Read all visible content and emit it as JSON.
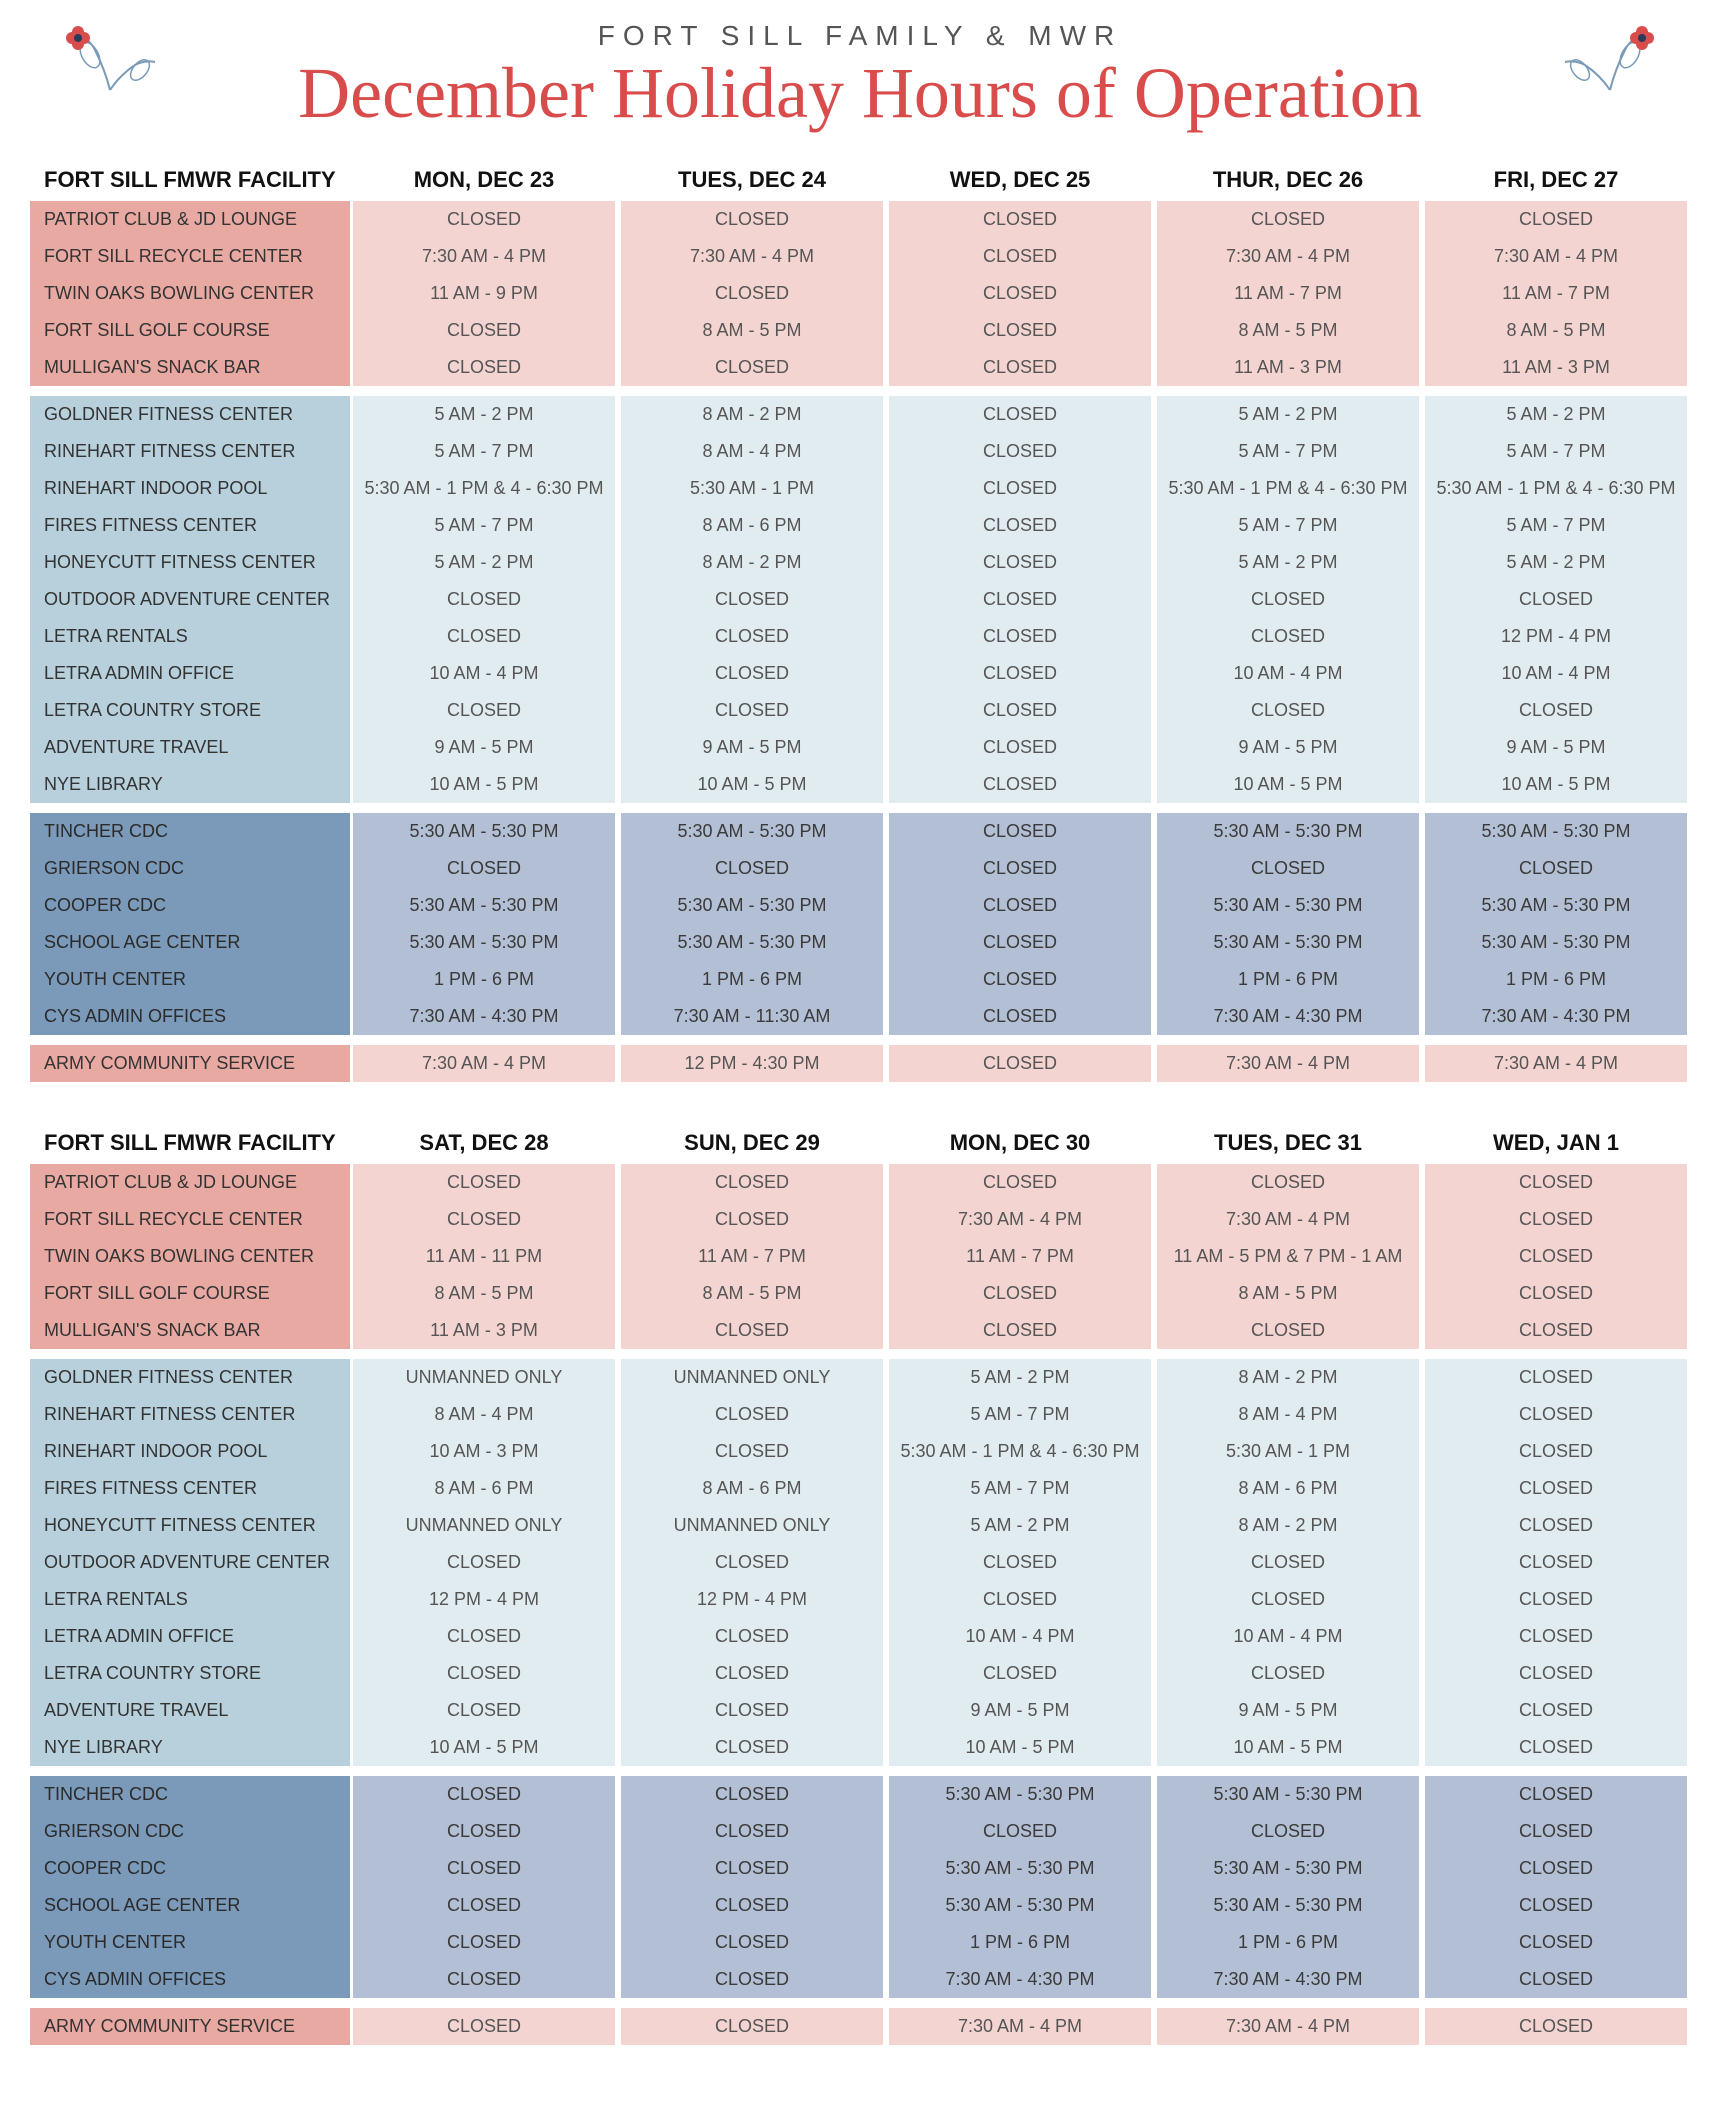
{
  "header": {
    "subtitle": "FORT SILL FAMILY & MWR",
    "title": "December Holiday Hours of Operation"
  },
  "colors": {
    "title_red": "#d94c4c",
    "red_dark": "#e8a9a3",
    "red_light": "#f4d4d0",
    "lblue_dark": "#b7d0dc",
    "lblue_light": "#e1ecf0",
    "dblue_dark": "#7b99b8",
    "dblue_light": "#b2bfd4"
  },
  "tables": [
    {
      "facility_header": "FORT SILL FMWR FACILITY",
      "days": [
        "MON, DEC 23",
        "TUES, DEC 24",
        "WED, DEC 25",
        "THUR, DEC 26",
        "FRI, DEC 27"
      ],
      "groups": [
        {
          "style": "red-group",
          "rows": [
            {
              "name": "PATRIOT CLUB & JD LOUNGE",
              "cells": [
                "CLOSED",
                "CLOSED",
                "CLOSED",
                "CLOSED",
                "CLOSED"
              ]
            },
            {
              "name": "FORT SILL RECYCLE CENTER",
              "cells": [
                "7:30 AM - 4 PM",
                "7:30 AM - 4 PM",
                "CLOSED",
                "7:30 AM - 4 PM",
                "7:30 AM - 4 PM"
              ]
            },
            {
              "name": "TWIN OAKS BOWLING CENTER",
              "cells": [
                "11 AM - 9 PM",
                "CLOSED",
                "CLOSED",
                "11 AM - 7 PM",
                "11 AM - 7 PM"
              ]
            },
            {
              "name": "FORT SILL GOLF COURSE",
              "cells": [
                "CLOSED",
                "8 AM - 5 PM",
                "CLOSED",
                "8 AM - 5 PM",
                "8 AM - 5 PM"
              ]
            },
            {
              "name": "MULLIGAN'S SNACK BAR",
              "cells": [
                "CLOSED",
                "CLOSED",
                "CLOSED",
                "11 AM - 3 PM",
                "11 AM - 3 PM"
              ]
            }
          ]
        },
        {
          "style": "lblue-group",
          "rows": [
            {
              "name": "GOLDNER FITNESS CENTER",
              "cells": [
                "5 AM - 2 PM",
                "8 AM - 2 PM",
                "CLOSED",
                "5 AM - 2 PM",
                "5 AM - 2 PM"
              ]
            },
            {
              "name": "RINEHART FITNESS CENTER",
              "cells": [
                "5 AM - 7 PM",
                "8 AM - 4 PM",
                "CLOSED",
                "5 AM - 7 PM",
                "5 AM - 7 PM"
              ]
            },
            {
              "name": "RINEHART INDOOR POOL",
              "cells": [
                "5:30 AM - 1 PM & 4 - 6:30 PM",
                "5:30 AM - 1 PM",
                "CLOSED",
                "5:30 AM - 1 PM & 4 - 6:30 PM",
                "5:30 AM - 1 PM & 4 - 6:30 PM"
              ]
            },
            {
              "name": "FIRES FITNESS CENTER",
              "cells": [
                "5 AM - 7 PM",
                "8 AM - 6 PM",
                "CLOSED",
                "5 AM - 7 PM",
                "5 AM - 7 PM"
              ]
            },
            {
              "name": "HONEYCUTT FITNESS CENTER",
              "cells": [
                "5 AM - 2 PM",
                "8 AM - 2 PM",
                "CLOSED",
                "5 AM - 2 PM",
                "5 AM - 2 PM"
              ]
            },
            {
              "name": "OUTDOOR ADVENTURE CENTER",
              "cells": [
                "CLOSED",
                "CLOSED",
                "CLOSED",
                "CLOSED",
                "CLOSED"
              ]
            },
            {
              "name": "LETRA RENTALS",
              "cells": [
                "CLOSED",
                "CLOSED",
                "CLOSED",
                "CLOSED",
                "12 PM - 4 PM"
              ]
            },
            {
              "name": "LETRA ADMIN OFFICE",
              "cells": [
                "10 AM - 4 PM",
                "CLOSED",
                "CLOSED",
                "10 AM - 4 PM",
                "10 AM - 4 PM"
              ]
            },
            {
              "name": "LETRA COUNTRY STORE",
              "cells": [
                "CLOSED",
                "CLOSED",
                "CLOSED",
                "CLOSED",
                "CLOSED"
              ]
            },
            {
              "name": "ADVENTURE TRAVEL",
              "cells": [
                "9 AM - 5 PM",
                "9 AM - 5 PM",
                "CLOSED",
                "9 AM - 5 PM",
                "9 AM - 5 PM"
              ]
            },
            {
              "name": "NYE LIBRARY",
              "cells": [
                "10 AM - 5 PM",
                "10 AM - 5 PM",
                "CLOSED",
                "10 AM - 5 PM",
                "10 AM - 5 PM"
              ]
            }
          ]
        },
        {
          "style": "dblue-group",
          "rows": [
            {
              "name": "TINCHER CDC",
              "cells": [
                "5:30 AM - 5:30 PM",
                "5:30 AM - 5:30 PM",
                "CLOSED",
                "5:30 AM - 5:30 PM",
                "5:30 AM - 5:30 PM"
              ]
            },
            {
              "name": "GRIERSON CDC",
              "cells": [
                "CLOSED",
                "CLOSED",
                "CLOSED",
                "CLOSED",
                "CLOSED"
              ]
            },
            {
              "name": "COOPER CDC",
              "cells": [
                "5:30 AM - 5:30 PM",
                "5:30 AM - 5:30 PM",
                "CLOSED",
                "5:30 AM - 5:30 PM",
                "5:30 AM - 5:30 PM"
              ]
            },
            {
              "name": "SCHOOL AGE CENTER",
              "cells": [
                "5:30 AM - 5:30 PM",
                "5:30 AM - 5:30 PM",
                "CLOSED",
                "5:30 AM - 5:30 PM",
                "5:30 AM - 5:30 PM"
              ]
            },
            {
              "name": "YOUTH CENTER",
              "cells": [
                "1 PM - 6 PM",
                "1 PM - 6 PM",
                "CLOSED",
                "1 PM - 6 PM",
                "1 PM - 6 PM"
              ]
            },
            {
              "name": "CYS ADMIN OFFICES",
              "cells": [
                "7:30 AM - 4:30 PM",
                "7:30 AM - 11:30 AM",
                "CLOSED",
                "7:30 AM - 4:30 PM",
                "7:30 AM - 4:30 PM"
              ]
            }
          ]
        },
        {
          "style": "army-group",
          "rows": [
            {
              "name": "ARMY COMMUNITY SERVICE",
              "cells": [
                "7:30 AM - 4 PM",
                "12 PM - 4:30 PM",
                "CLOSED",
                "7:30 AM - 4 PM",
                "7:30 AM - 4 PM"
              ]
            }
          ]
        }
      ]
    },
    {
      "facility_header": "FORT SILL FMWR FACILITY",
      "days": [
        "SAT, DEC 28",
        "SUN, DEC 29",
        "MON, DEC 30",
        "TUES, DEC 31",
        "WED, JAN 1"
      ],
      "groups": [
        {
          "style": "red-group",
          "rows": [
            {
              "name": "PATRIOT CLUB & JD LOUNGE",
              "cells": [
                "CLOSED",
                "CLOSED",
                "CLOSED",
                "CLOSED",
                "CLOSED"
              ]
            },
            {
              "name": "FORT SILL RECYCLE CENTER",
              "cells": [
                "CLOSED",
                "CLOSED",
                "7:30 AM - 4 PM",
                "7:30 AM - 4 PM",
                "CLOSED"
              ]
            },
            {
              "name": "TWIN OAKS BOWLING CENTER",
              "cells": [
                "11 AM - 11 PM",
                "11 AM - 7 PM",
                "11 AM - 7 PM",
                "11 AM - 5 PM & 7 PM - 1 AM",
                "CLOSED"
              ]
            },
            {
              "name": "FORT SILL GOLF COURSE",
              "cells": [
                "8 AM - 5 PM",
                "8 AM - 5 PM",
                "CLOSED",
                "8 AM - 5 PM",
                "CLOSED"
              ]
            },
            {
              "name": "MULLIGAN'S SNACK BAR",
              "cells": [
                "11 AM - 3 PM",
                "CLOSED",
                "CLOSED",
                "CLOSED",
                "CLOSED"
              ]
            }
          ]
        },
        {
          "style": "lblue-group",
          "rows": [
            {
              "name": "GOLDNER FITNESS CENTER",
              "cells": [
                "UNMANNED ONLY",
                "UNMANNED ONLY",
                "5 AM - 2 PM",
                "8 AM - 2 PM",
                "CLOSED"
              ]
            },
            {
              "name": "RINEHART FITNESS CENTER",
              "cells": [
                "8 AM - 4 PM",
                "CLOSED",
                "5 AM - 7 PM",
                "8 AM - 4 PM",
                "CLOSED"
              ]
            },
            {
              "name": "RINEHART INDOOR POOL",
              "cells": [
                "10 AM - 3 PM",
                "CLOSED",
                "5:30 AM - 1 PM & 4 - 6:30 PM",
                "5:30 AM - 1 PM",
                "CLOSED"
              ]
            },
            {
              "name": "FIRES FITNESS CENTER",
              "cells": [
                "8 AM - 6 PM",
                "8 AM - 6 PM",
                "5 AM - 7 PM",
                "8 AM - 6 PM",
                "CLOSED"
              ]
            },
            {
              "name": "HONEYCUTT FITNESS CENTER",
              "cells": [
                "UNMANNED ONLY",
                "UNMANNED ONLY",
                "5 AM - 2 PM",
                "8 AM - 2 PM",
                "CLOSED"
              ]
            },
            {
              "name": "OUTDOOR ADVENTURE CENTER",
              "cells": [
                "CLOSED",
                "CLOSED",
                "CLOSED",
                "CLOSED",
                "CLOSED"
              ]
            },
            {
              "name": "LETRA RENTALS",
              "cells": [
                "12 PM - 4 PM",
                "12 PM - 4 PM",
                "CLOSED",
                "CLOSED",
                "CLOSED"
              ]
            },
            {
              "name": "LETRA ADMIN OFFICE",
              "cells": [
                "CLOSED",
                "CLOSED",
                "10 AM - 4 PM",
                "10 AM - 4 PM",
                "CLOSED"
              ]
            },
            {
              "name": "LETRA COUNTRY STORE",
              "cells": [
                "CLOSED",
                "CLOSED",
                "CLOSED",
                "CLOSED",
                "CLOSED"
              ]
            },
            {
              "name": "ADVENTURE TRAVEL",
              "cells": [
                "CLOSED",
                "CLOSED",
                "9 AM - 5 PM",
                "9 AM - 5 PM",
                "CLOSED"
              ]
            },
            {
              "name": "NYE LIBRARY",
              "cells": [
                "10 AM - 5 PM",
                "CLOSED",
                "10 AM - 5 PM",
                "10 AM - 5 PM",
                "CLOSED"
              ]
            }
          ]
        },
        {
          "style": "dblue-group",
          "rows": [
            {
              "name": "TINCHER CDC",
              "cells": [
                "CLOSED",
                "CLOSED",
                "5:30 AM - 5:30 PM",
                "5:30 AM - 5:30 PM",
                "CLOSED"
              ]
            },
            {
              "name": "GRIERSON CDC",
              "cells": [
                "CLOSED",
                "CLOSED",
                "CLOSED",
                "CLOSED",
                "CLOSED"
              ]
            },
            {
              "name": "COOPER CDC",
              "cells": [
                "CLOSED",
                "CLOSED",
                "5:30 AM - 5:30 PM",
                "5:30 AM - 5:30 PM",
                "CLOSED"
              ]
            },
            {
              "name": "SCHOOL AGE CENTER",
              "cells": [
                "CLOSED",
                "CLOSED",
                "5:30 AM - 5:30 PM",
                "5:30 AM - 5:30 PM",
                "CLOSED"
              ]
            },
            {
              "name": "YOUTH CENTER",
              "cells": [
                "CLOSED",
                "CLOSED",
                "1 PM - 6 PM",
                "1 PM - 6 PM",
                "CLOSED"
              ]
            },
            {
              "name": "CYS ADMIN OFFICES",
              "cells": [
                "CLOSED",
                "CLOSED",
                "7:30 AM - 4:30 PM",
                "7:30 AM - 4:30 PM",
                "CLOSED"
              ]
            }
          ]
        },
        {
          "style": "army-group",
          "rows": [
            {
              "name": "ARMY COMMUNITY SERVICE",
              "cells": [
                "CLOSED",
                "CLOSED",
                "7:30 AM - 4 PM",
                "7:30 AM - 4 PM",
                "CLOSED"
              ]
            }
          ]
        }
      ]
    }
  ]
}
